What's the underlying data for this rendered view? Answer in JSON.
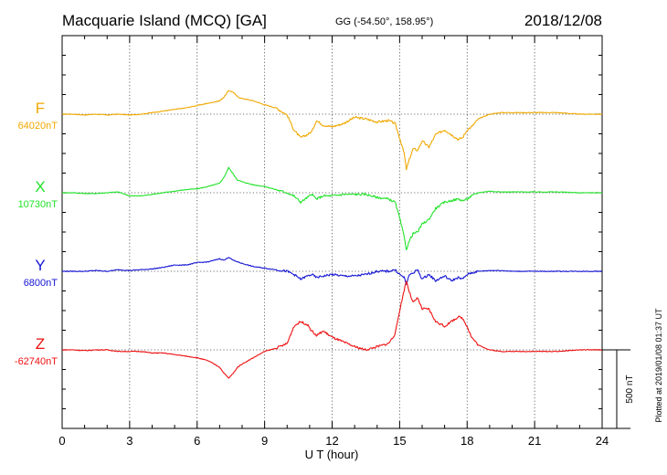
{
  "header": {
    "station": "Macquarie Island (MCQ)  [GA]",
    "coords": "GG (-54.50°, 158.95°)",
    "date": "2018/12/08"
  },
  "plotted_note": "Plotted at 2019/01/08 01:37 UT",
  "chart_data": {
    "type": "line",
    "xlabel": "U T (hour)",
    "xlim": [
      0,
      24
    ],
    "xticks": [
      0,
      3,
      6,
      9,
      12,
      15,
      18,
      21,
      24
    ],
    "grid": true,
    "scale_bar": {
      "label": "500 nT",
      "nT": 500
    },
    "series": [
      {
        "name": "F",
        "baseline": "64020nT",
        "color": "#f0a800",
        "x": [
          0,
          0.5,
          1,
          1.5,
          2,
          2.5,
          3,
          3.5,
          4,
          4.5,
          5,
          5.5,
          6,
          6.5,
          7,
          7.2,
          7.4,
          7.6,
          7.8,
          8,
          8.5,
          9,
          9.5,
          10,
          10.3,
          10.6,
          10.9,
          11.1,
          11.3,
          11.6,
          12,
          12.5,
          13,
          13.5,
          14,
          14.5,
          14.8,
          15,
          15.2,
          15.3,
          15.45,
          15.6,
          15.8,
          16,
          16.3,
          16.6,
          17,
          17.3,
          17.6,
          17.8,
          18,
          18.2,
          18.5,
          19,
          19.5,
          20,
          21,
          22,
          23,
          24
        ],
        "values": [
          0,
          0,
          -5,
          0,
          -5,
          0,
          -5,
          0,
          10,
          20,
          30,
          40,
          55,
          70,
          85,
          110,
          150,
          140,
          110,
          100,
          85,
          60,
          40,
          -5,
          -100,
          -150,
          -130,
          -110,
          -40,
          -70,
          -80,
          -60,
          -20,
          -30,
          -50,
          -40,
          -60,
          -150,
          -250,
          -350,
          -280,
          -220,
          -230,
          -170,
          -210,
          -130,
          -100,
          -130,
          -160,
          -150,
          -100,
          -80,
          -30,
          0,
          10,
          10,
          10,
          10,
          0,
          0
        ]
      },
      {
        "name": "X",
        "baseline": "10730nT",
        "color": "#22e22a",
        "x": [
          0,
          0.5,
          1,
          1.5,
          2,
          2.5,
          3,
          3.5,
          4,
          4.5,
          5,
          5.5,
          6,
          6.5,
          7,
          7.2,
          7.4,
          7.6,
          7.8,
          8,
          8.5,
          9,
          9.5,
          10,
          10.3,
          10.6,
          10.9,
          11.1,
          11.3,
          11.6,
          12,
          12.5,
          13,
          13.5,
          14,
          14.5,
          14.8,
          15,
          15.2,
          15.3,
          15.45,
          15.6,
          15.8,
          16,
          16.3,
          16.6,
          17,
          17.3,
          17.6,
          17.8,
          18,
          18.2,
          18.5,
          19,
          19.5,
          20,
          21,
          22,
          23,
          24
        ],
        "values": [
          0,
          0,
          -5,
          -5,
          0,
          5,
          -20,
          -20,
          -10,
          0,
          10,
          20,
          25,
          40,
          60,
          100,
          160,
          120,
          80,
          70,
          50,
          40,
          20,
          0,
          -20,
          -60,
          -30,
          -10,
          -40,
          -20,
          -20,
          -10,
          -10,
          -10,
          -30,
          -40,
          -60,
          -160,
          -280,
          -360,
          -300,
          -260,
          -250,
          -200,
          -170,
          -100,
          -60,
          -50,
          -40,
          -50,
          -40,
          -20,
          0,
          10,
          5,
          5,
          5,
          5,
          0,
          0
        ]
      },
      {
        "name": "Y",
        "baseline": "6800nT",
        "color": "#1414d4",
        "x": [
          0,
          0.5,
          1,
          1.5,
          2,
          2.5,
          3,
          3.5,
          4,
          4.5,
          5,
          5.5,
          6,
          6.5,
          7,
          7.2,
          7.4,
          7.6,
          7.8,
          8,
          8.5,
          9,
          9.5,
          10,
          10.3,
          10.6,
          10.9,
          11.1,
          11.3,
          11.6,
          12,
          12.5,
          13,
          13.5,
          14,
          14.5,
          14.8,
          15,
          15.2,
          15.3,
          15.45,
          15.6,
          15.8,
          16,
          16.3,
          16.6,
          17,
          17.3,
          17.6,
          17.8,
          18,
          18.2,
          18.5,
          19,
          19.5,
          20,
          21,
          22,
          23,
          24
        ],
        "values": [
          0,
          0,
          0,
          5,
          0,
          10,
          5,
          10,
          15,
          25,
          40,
          40,
          55,
          60,
          80,
          70,
          90,
          70,
          60,
          50,
          30,
          20,
          10,
          0,
          -20,
          -50,
          -30,
          -20,
          -40,
          -30,
          -20,
          -30,
          -30,
          -20,
          0,
          0,
          10,
          -20,
          -40,
          -80,
          -20,
          -10,
          10,
          -50,
          -20,
          -60,
          -30,
          -60,
          -40,
          -50,
          -20,
          -10,
          0,
          5,
          5,
          0,
          0,
          0,
          0,
          0
        ]
      },
      {
        "name": "Z",
        "baseline": "-62740nT",
        "color": "#ee1010",
        "x": [
          0,
          0.5,
          1,
          1.5,
          2,
          2.5,
          3,
          3.5,
          4,
          4.5,
          5,
          5.5,
          6,
          6.5,
          7,
          7.2,
          7.4,
          7.6,
          7.8,
          8,
          8.5,
          9,
          9.5,
          10,
          10.3,
          10.6,
          10.9,
          11.1,
          11.3,
          11.6,
          12,
          12.5,
          13,
          13.5,
          14,
          14.5,
          14.8,
          15,
          15.2,
          15.3,
          15.45,
          15.6,
          15.8,
          16,
          16.3,
          16.6,
          17,
          17.3,
          17.6,
          17.8,
          18,
          18.2,
          18.5,
          19,
          19.5,
          20,
          21,
          22,
          23,
          24
        ],
        "values": [
          0,
          0,
          -5,
          0,
          0,
          -10,
          -10,
          -10,
          -20,
          -20,
          -30,
          -40,
          -50,
          -70,
          -110,
          -150,
          -180,
          -150,
          -110,
          -90,
          -50,
          -10,
          10,
          40,
          150,
          180,
          160,
          120,
          90,
          120,
          80,
          50,
          20,
          0,
          20,
          40,
          100,
          250,
          380,
          440,
          360,
          300,
          330,
          260,
          260,
          180,
          150,
          180,
          210,
          200,
          150,
          80,
          30,
          0,
          -10,
          -10,
          -10,
          -10,
          0,
          0
        ]
      }
    ]
  }
}
